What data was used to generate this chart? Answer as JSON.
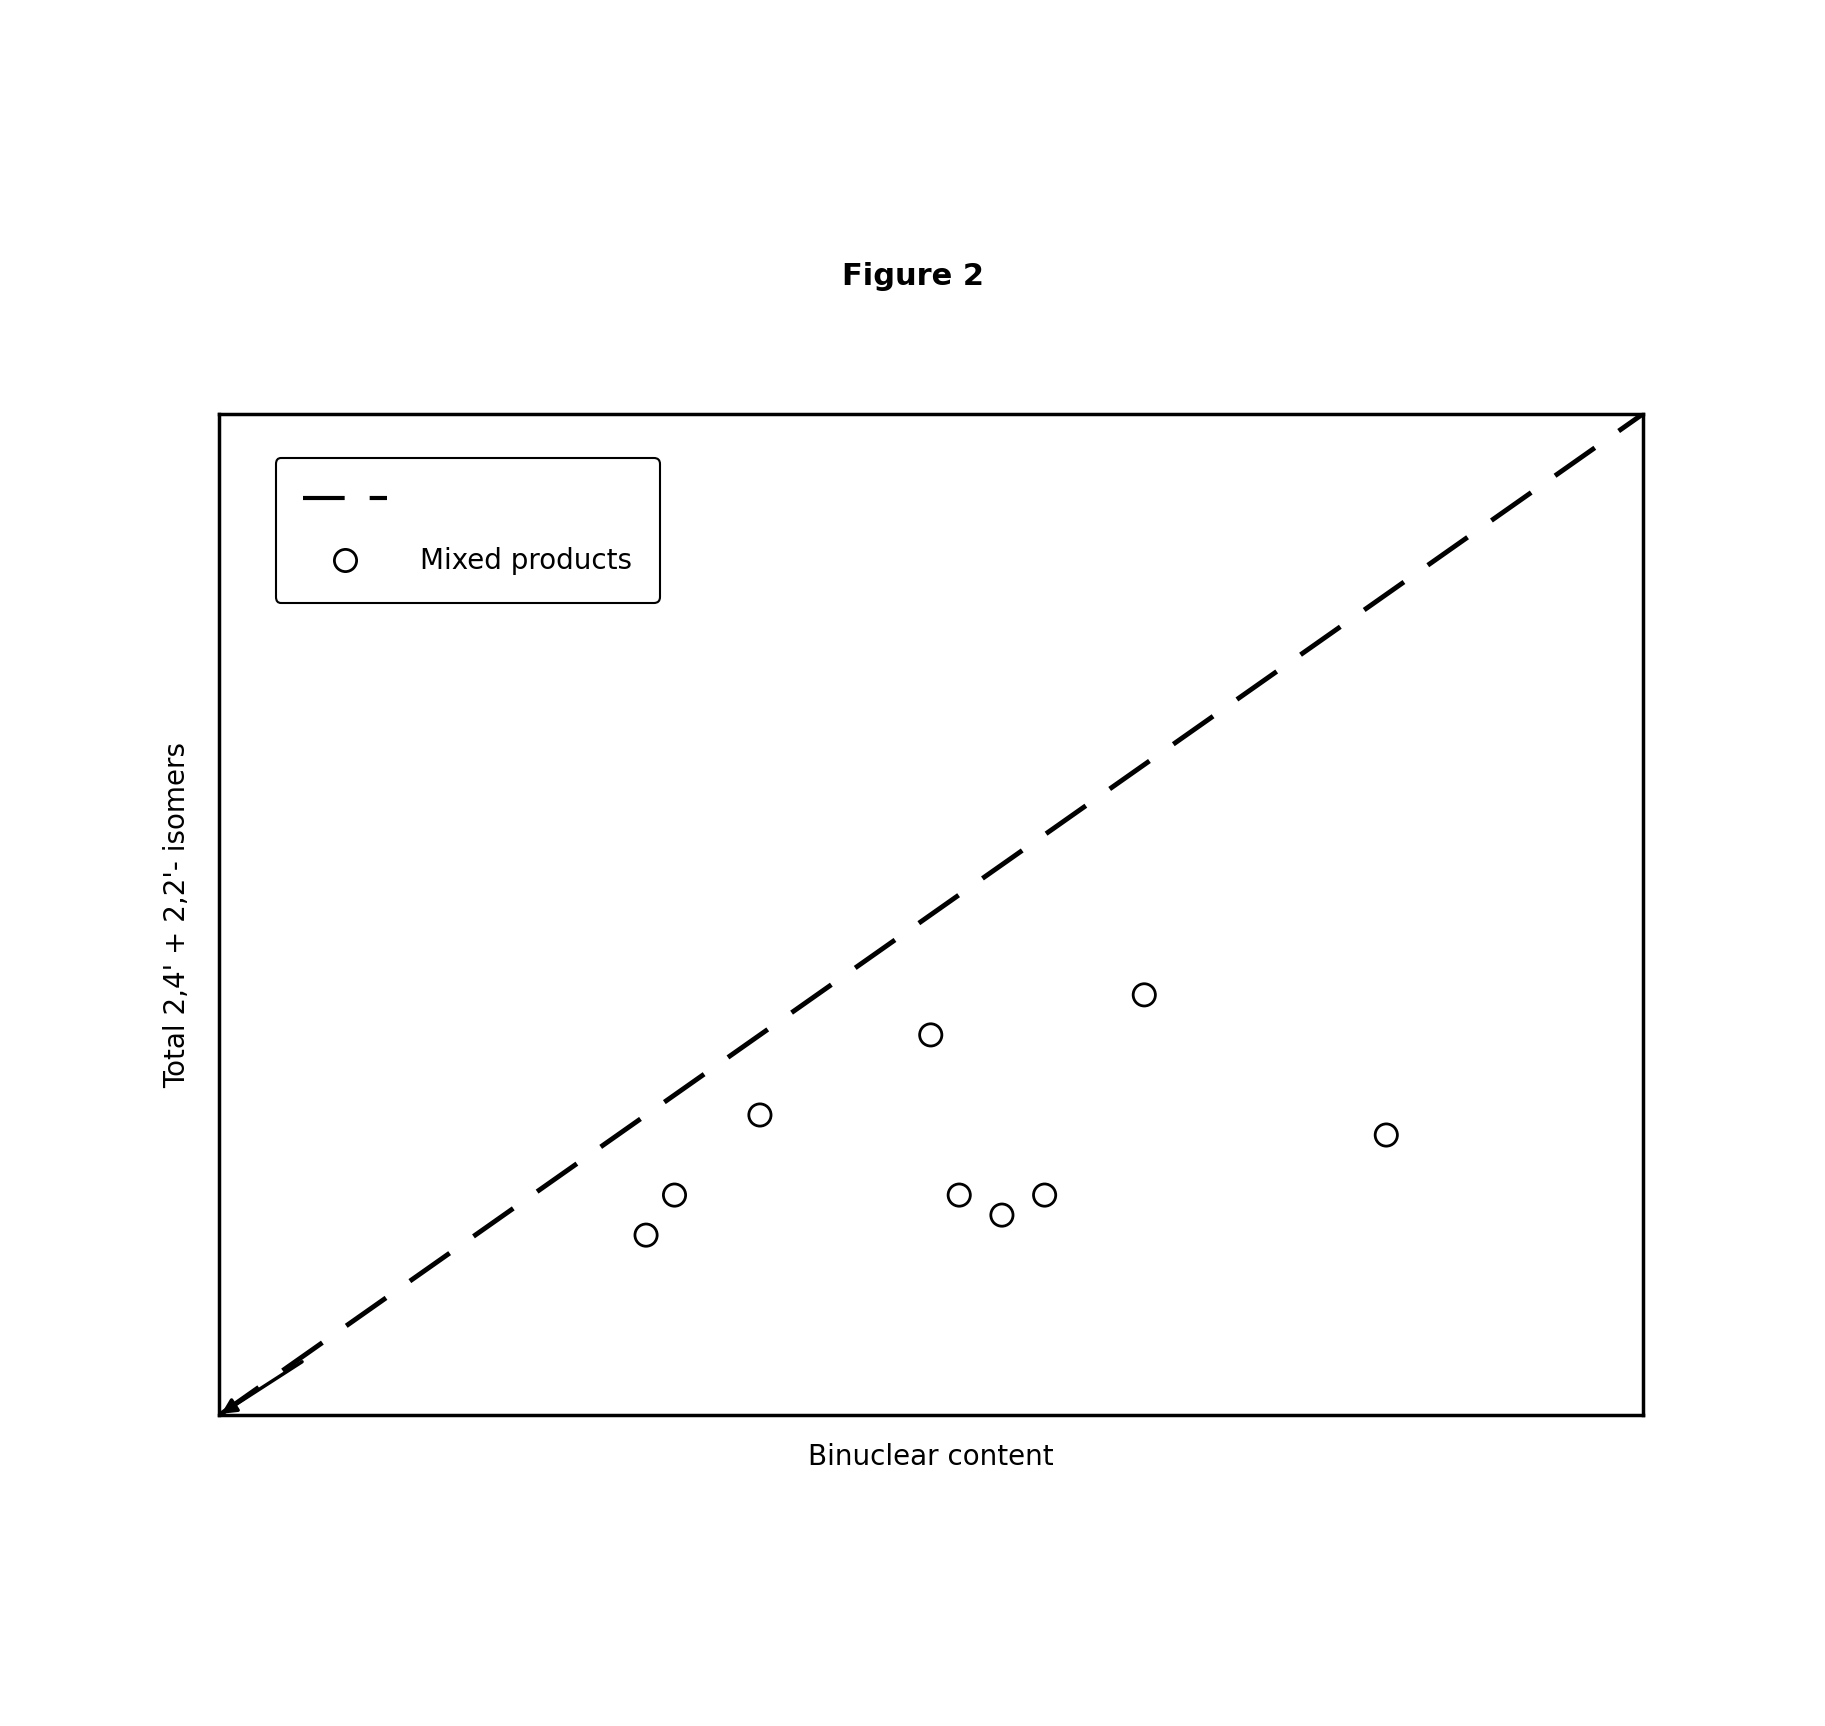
{
  "title": "Figure 2",
  "xlabel": "Binuclear content",
  "ylabel": "Total 2,4' + 2,2'- isomers",
  "scatter_x": [
    0.32,
    0.3,
    0.38,
    0.5,
    0.52,
    0.55,
    0.58,
    0.65,
    0.82
  ],
  "scatter_y": [
    0.22,
    0.18,
    0.3,
    0.38,
    0.22,
    0.2,
    0.22,
    0.42,
    0.28
  ],
  "dashed_line_x": [
    0.0,
    1.0
  ],
  "dashed_line_y": [
    0.0,
    1.0
  ],
  "xlim": [
    0.0,
    1.0
  ],
  "ylim": [
    0.0,
    1.0
  ],
  "marker_color": "none",
  "marker_edge_color": "#000000",
  "line_color": "#000000",
  "background_color": "#ffffff",
  "title_fontsize": 22,
  "label_fontsize": 20,
  "marker_size": 16,
  "legend_label_dashed": "",
  "legend_label_scatter": "Mixed products"
}
